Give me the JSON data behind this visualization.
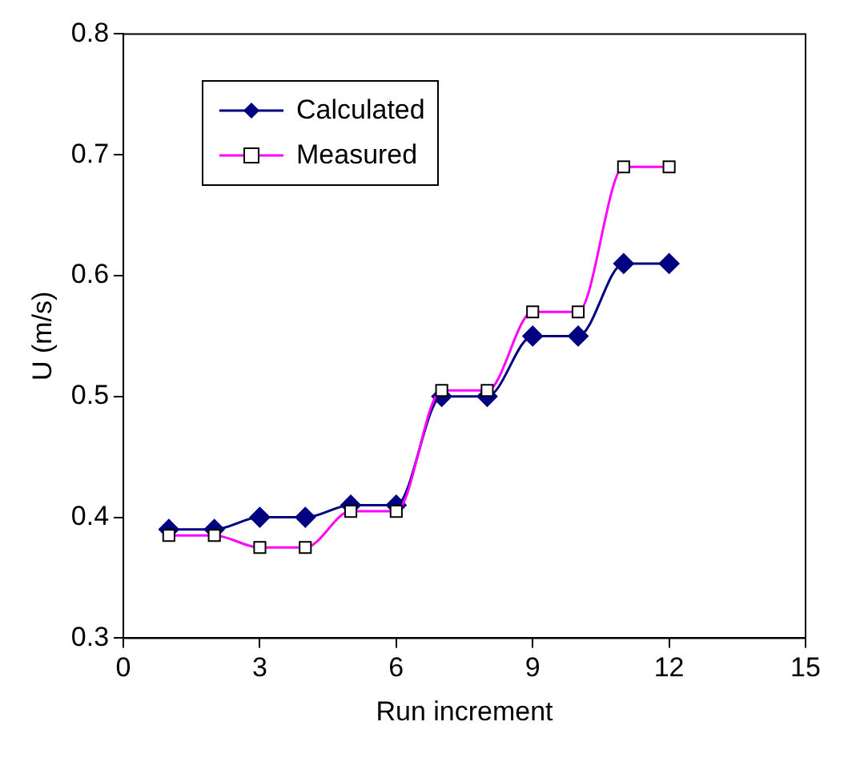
{
  "chart_data": {
    "type": "line",
    "xlabel": "Run increment",
    "ylabel": "U (m/s)",
    "xlim": [
      0,
      15
    ],
    "xticks": [
      0,
      3,
      6,
      9,
      12,
      15
    ],
    "ylim": [
      0.3,
      0.8
    ],
    "yticks": [
      0.3,
      0.4,
      0.5,
      0.6,
      0.7,
      0.8
    ],
    "grid": false,
    "legend": "top left",
    "x": [
      1,
      2,
      3,
      4,
      5,
      6,
      7,
      8,
      9,
      10,
      11,
      12
    ],
    "series": [
      {
        "name": "Calculated",
        "color": "#000080",
        "marker": "diamond",
        "values": [
          0.39,
          0.39,
          0.4,
          0.4,
          0.41,
          0.41,
          0.5,
          0.5,
          0.55,
          0.55,
          0.61,
          0.61
        ]
      },
      {
        "name": "Measured",
        "color": "#ff00ff",
        "marker": "square",
        "values": [
          0.385,
          0.385,
          0.375,
          0.375,
          0.405,
          0.405,
          0.505,
          0.505,
          0.57,
          0.57,
          0.69,
          0.69
        ]
      }
    ]
  }
}
